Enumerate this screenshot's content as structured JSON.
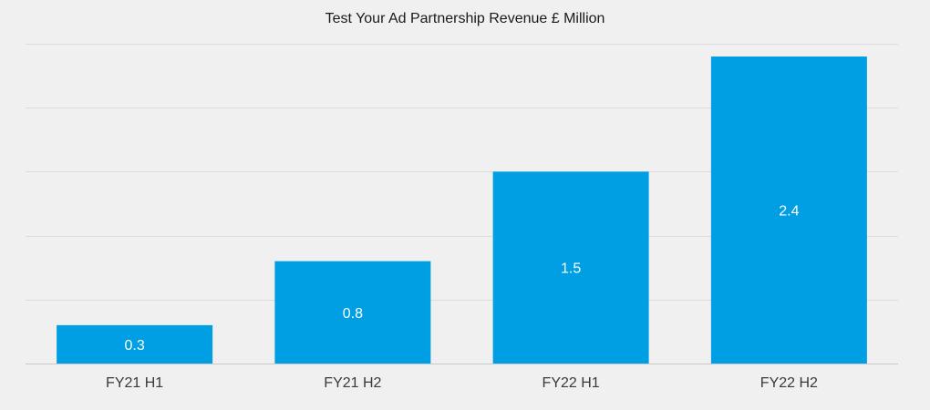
{
  "chart_data": {
    "type": "bar",
    "title": "Test Your Ad Partnership Revenue £ Million",
    "categories": [
      "FY21 H1",
      "FY21 H2",
      "FY22 H1",
      "FY22 H2"
    ],
    "values": [
      0.3,
      0.8,
      1.5,
      2.4
    ],
    "xlabel": "",
    "ylabel": "",
    "ylim": [
      0,
      2.5
    ],
    "grid": true,
    "data_labels": true,
    "colors": {
      "bar": "#009fe3",
      "bar_label": "#ffffff",
      "background": "#f0f0f0"
    }
  }
}
